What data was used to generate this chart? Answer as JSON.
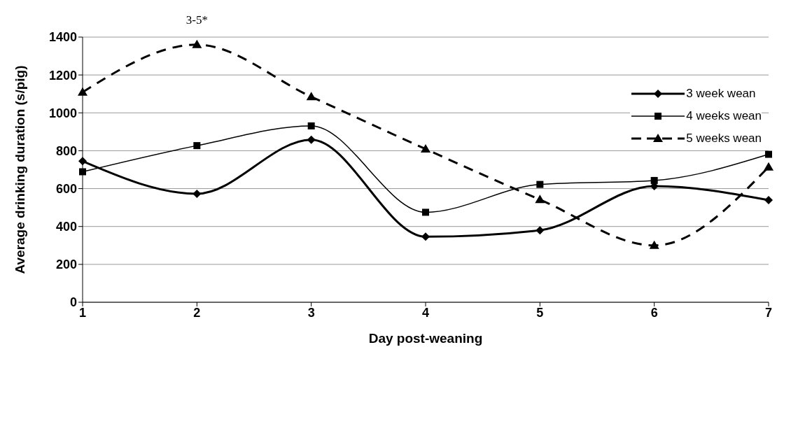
{
  "chart_data": {
    "type": "line",
    "xlabel": "Day post-weaning",
    "ylabel": "Average drinking duration (s/pig)",
    "categories": [
      "1",
      "2",
      "3",
      "4",
      "5",
      "6",
      "7"
    ],
    "series": [
      {
        "name": "3 week wean",
        "color": "#000000",
        "marker": "diamond",
        "line_style": "solid",
        "values": [
          745,
          573,
          858,
          346,
          380,
          613,
          539
        ]
      },
      {
        "name": "4 weeks wean",
        "color": "#000000",
        "marker": "square",
        "line_style": "solid",
        "values": [
          689,
          827,
          931,
          475,
          622,
          643,
          781
        ]
      },
      {
        "name": "5 weeks wean",
        "color": "#000000",
        "marker": "triangle",
        "line_style": "dashed",
        "values": [
          1109,
          1360,
          1085,
          809,
          542,
          300,
          714
        ]
      }
    ],
    "ylim": [
      0,
      1400
    ],
    "yticks": [
      0,
      200,
      400,
      600,
      800,
      1000,
      1200,
      1400
    ],
    "grid": "y",
    "legend": "top right",
    "annotations": [
      {
        "text": "3-5*",
        "x": "2",
        "y": 1360
      }
    ]
  }
}
